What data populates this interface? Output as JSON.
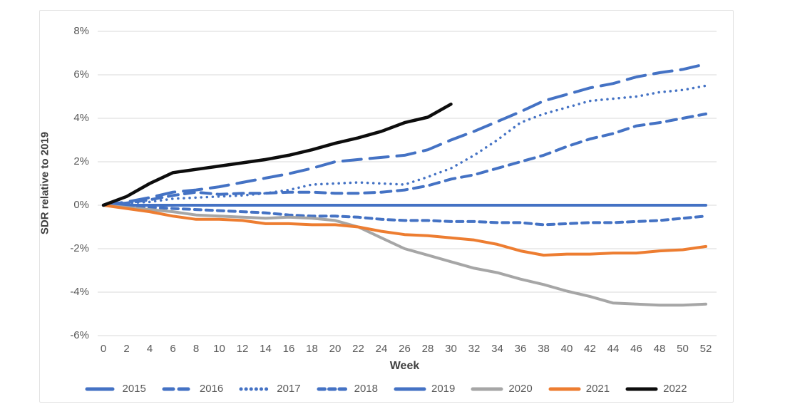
{
  "chart_data": {
    "type": "line",
    "title": "",
    "xlabel": "Week",
    "ylabel": "SDR relative to 2019",
    "unit": "percent",
    "grid": true,
    "legend_position": "bottom",
    "xlim": [
      0,
      52
    ],
    "ylim": [
      -6,
      8
    ],
    "x": [
      0,
      2,
      4,
      6,
      8,
      10,
      12,
      14,
      16,
      18,
      20,
      22,
      24,
      26,
      28,
      30,
      32,
      34,
      36,
      38,
      40,
      42,
      44,
      46,
      48,
      50,
      52
    ],
    "x_tick_labels": [
      "0",
      "2",
      "4",
      "6",
      "8",
      "10",
      "12",
      "14",
      "16",
      "18",
      "20",
      "22",
      "24",
      "26",
      "28",
      "30",
      "32",
      "34",
      "36",
      "38",
      "40",
      "42",
      "44",
      "46",
      "48",
      "50",
      "52"
    ],
    "y_ticks": {
      "values": [
        8,
        6,
        4,
        2,
        0,
        -2,
        -4,
        -6
      ],
      "labels": [
        "8%",
        "6%",
        "4%",
        "2%",
        "0%",
        "-2%",
        "-4%",
        "-6%"
      ]
    },
    "series": [
      {
        "name": "2015",
        "color": "#4472C4",
        "dash": "long-dash",
        "width": 4,
        "values": [
          0,
          0.15,
          0.35,
          0.6,
          0.7,
          0.85,
          1.05,
          1.25,
          1.45,
          1.7,
          2.0,
          2.1,
          2.2,
          2.3,
          2.55,
          3.0,
          3.4,
          3.85,
          4.3,
          4.8,
          5.1,
          5.4,
          5.6,
          5.9,
          6.1,
          6.25,
          6.5
        ]
      },
      {
        "name": "2016",
        "color": "#4472C4",
        "dash": "dash",
        "width": 4,
        "values": [
          0,
          0.1,
          0.25,
          0.45,
          0.6,
          0.5,
          0.55,
          0.55,
          0.6,
          0.6,
          0.55,
          0.55,
          0.6,
          0.7,
          0.9,
          1.2,
          1.4,
          1.7,
          2.0,
          2.3,
          2.7,
          3.05,
          3.3,
          3.65,
          3.8,
          4.0,
          4.2
        ]
      },
      {
        "name": "2017",
        "color": "#4472C4",
        "dash": "dotted",
        "width": 3.5,
        "values": [
          0,
          0.1,
          0.15,
          0.3,
          0.35,
          0.4,
          0.45,
          0.55,
          0.7,
          0.95,
          1.0,
          1.05,
          1.0,
          0.95,
          1.3,
          1.7,
          2.3,
          3.0,
          3.8,
          4.2,
          4.5,
          4.8,
          4.9,
          5.0,
          5.2,
          5.3,
          5.5
        ]
      },
      {
        "name": "2018",
        "color": "#4472C4",
        "dash": "short-dash",
        "width": 4,
        "values": [
          0,
          -0.05,
          -0.1,
          -0.15,
          -0.2,
          -0.25,
          -0.3,
          -0.35,
          -0.45,
          -0.5,
          -0.5,
          -0.55,
          -0.65,
          -0.7,
          -0.7,
          -0.75,
          -0.75,
          -0.8,
          -0.8,
          -0.9,
          -0.85,
          -0.8,
          -0.8,
          -0.75,
          -0.7,
          -0.6,
          -0.5
        ]
      },
      {
        "name": "2019",
        "color": "#4472C4",
        "dash": "solid",
        "width": 4,
        "values": [
          0,
          0,
          0,
          0,
          0,
          0,
          0,
          0,
          0,
          0,
          0,
          0,
          0,
          0,
          0,
          0,
          0,
          0,
          0,
          0,
          0,
          0,
          0,
          0,
          0,
          0,
          0
        ]
      },
      {
        "name": "2020",
        "color": "#A6A6A6",
        "dash": "solid",
        "width": 4,
        "values": [
          0,
          -0.1,
          -0.2,
          -0.3,
          -0.45,
          -0.5,
          -0.55,
          -0.6,
          -0.55,
          -0.6,
          -0.7,
          -1.0,
          -1.5,
          -2.0,
          -2.3,
          -2.6,
          -2.9,
          -3.1,
          -3.4,
          -3.65,
          -3.95,
          -4.2,
          -4.5,
          -4.55,
          -4.6,
          -4.6,
          -4.55
        ]
      },
      {
        "name": "2021",
        "color": "#ED7D31",
        "dash": "solid",
        "width": 4,
        "values": [
          0,
          -0.15,
          -0.3,
          -0.5,
          -0.65,
          -0.65,
          -0.7,
          -0.85,
          -0.85,
          -0.9,
          -0.9,
          -1.0,
          -1.2,
          -1.35,
          -1.4,
          -1.5,
          -1.6,
          -1.8,
          -2.1,
          -2.3,
          -2.25,
          -2.25,
          -2.2,
          -2.2,
          -2.1,
          -2.05,
          -1.9
        ]
      },
      {
        "name": "2022",
        "color": "#0d0d0d",
        "dash": "solid",
        "width": 4.5,
        "values": [
          0,
          0.4,
          1.0,
          1.5,
          1.65,
          1.8,
          1.95,
          2.1,
          2.3,
          2.55,
          2.85,
          3.1,
          3.4,
          3.8,
          4.05,
          4.65
        ]
      }
    ],
    "colors": {
      "gridline": "#d9d9d9",
      "tick_text": "#595959",
      "axis_title_text": "#404040",
      "blue": "#4472C4",
      "gray": "#A6A6A6",
      "orange": "#ED7D31",
      "black": "#0d0d0d"
    }
  }
}
